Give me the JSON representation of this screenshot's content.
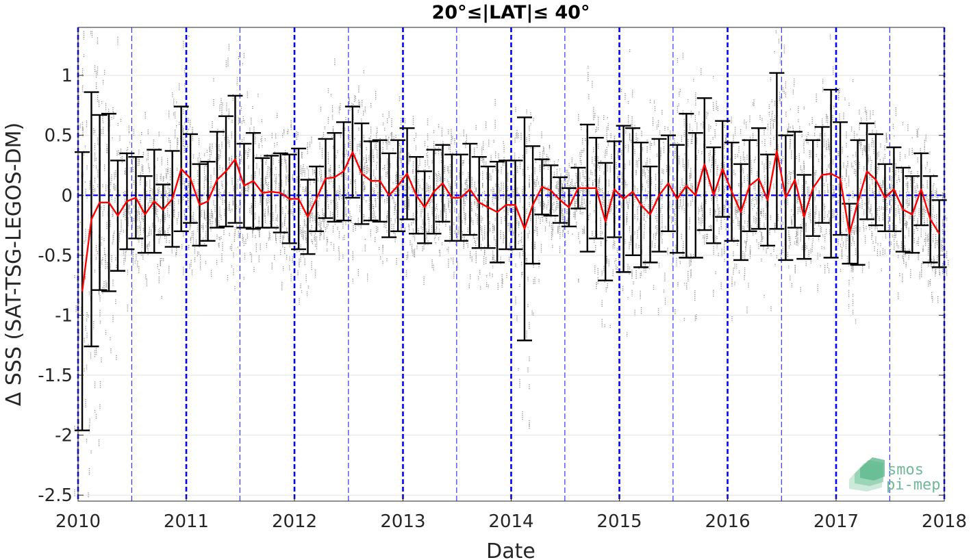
{
  "chart_data": {
    "type": "line",
    "title": "20°≤|LAT|≤ 40°",
    "xlabel": "Date",
    "ylabel": "Δ SSS (SAT-TSG-LEGOS-DM)",
    "xlim": [
      "2010-01-01",
      "2018-01-01"
    ],
    "ylim": [
      -2.55,
      1.4
    ],
    "x_ticks": [
      "2010",
      "2011",
      "2012",
      "2013",
      "2014",
      "2015",
      "2016",
      "2017",
      "2018"
    ],
    "y_ticks": [
      1,
      0.5,
      0,
      -0.5,
      -1,
      -1.5,
      -2,
      -2.5
    ],
    "y_tick_labels": [
      "1",
      "0.5",
      "0",
      "-0.5",
      "-1",
      "-1.5",
      "-2",
      "-2.5"
    ],
    "grid": true,
    "zero_line": {
      "y": 0,
      "style": "dashed",
      "color": "#0000ff"
    },
    "year_lines": {
      "style": "thick dashed",
      "color": "#0000ff"
    },
    "half_year_lines": {
      "style": "thin dashed",
      "color": "#3333ff"
    },
    "colors": {
      "mean_line": "#ff0000",
      "error_bars": "#000000",
      "scatter": "#777777",
      "reference_lines": "#0000ff"
    },
    "series": [
      {
        "style": "red line (monthly mean) with black error bars (± std)",
        "x": [
          "2010-01-15",
          "2010-02-15",
          "2010-03-15",
          "2010-04-15",
          "2010-05-15",
          "2010-06-15",
          "2010-07-15",
          "2010-08-15",
          "2010-09-15",
          "2010-10-15",
          "2010-11-15",
          "2010-12-15",
          "2011-01-15",
          "2011-02-15",
          "2011-03-15",
          "2011-04-15",
          "2011-05-15",
          "2011-06-15",
          "2011-07-15",
          "2011-08-15",
          "2011-09-15",
          "2011-10-15",
          "2011-11-15",
          "2011-12-15",
          "2012-01-15",
          "2012-02-15",
          "2012-03-15",
          "2012-04-15",
          "2012-05-15",
          "2012-06-15",
          "2012-07-15",
          "2012-08-15",
          "2012-09-15",
          "2012-10-15",
          "2012-11-15",
          "2012-12-15",
          "2013-01-15",
          "2013-02-15",
          "2013-03-15",
          "2013-04-15",
          "2013-05-15",
          "2013-06-15",
          "2013-07-15",
          "2013-08-15",
          "2013-09-15",
          "2013-10-15",
          "2013-11-15",
          "2013-12-15",
          "2014-01-15",
          "2014-02-15",
          "2014-03-15",
          "2014-04-15",
          "2014-05-15",
          "2014-06-15",
          "2014-07-15",
          "2014-08-15",
          "2014-09-15",
          "2014-10-15",
          "2014-11-15",
          "2014-12-15",
          "2015-01-15",
          "2015-02-15",
          "2015-03-15",
          "2015-04-15",
          "2015-05-15",
          "2015-06-15",
          "2015-07-15",
          "2015-08-15",
          "2015-09-15",
          "2015-10-15",
          "2015-11-15",
          "2015-12-15",
          "2016-01-15",
          "2016-02-15",
          "2016-03-15",
          "2016-04-15",
          "2016-05-15",
          "2016-06-15",
          "2016-07-15",
          "2016-08-15",
          "2016-09-15",
          "2016-10-15",
          "2016-11-15",
          "2016-12-15",
          "2017-01-15",
          "2017-02-15",
          "2017-03-15",
          "2017-04-15",
          "2017-05-15",
          "2017-06-15",
          "2017-07-15",
          "2017-08-15",
          "2017-09-15",
          "2017-10-15",
          "2017-11-15",
          "2017-12-15"
        ],
        "y": [
          -0.8,
          -0.2,
          -0.06,
          -0.06,
          -0.17,
          -0.05,
          -0.02,
          -0.16,
          -0.05,
          -0.12,
          -0.03,
          0.22,
          0.14,
          -0.08,
          -0.05,
          0.13,
          0.2,
          0.3,
          0.08,
          0.12,
          0.02,
          0.03,
          0.02,
          -0.03,
          -0.03,
          -0.18,
          -0.03,
          0.14,
          0.15,
          0.2,
          0.36,
          0.18,
          0.12,
          0.12,
          0.0,
          0.08,
          0.18,
          0.0,
          -0.1,
          0.03,
          0.1,
          -0.02,
          -0.02,
          0.05,
          -0.06,
          -0.1,
          -0.14,
          -0.08,
          -0.08,
          -0.28,
          -0.08,
          0.07,
          0.04,
          -0.04,
          -0.1,
          0.06,
          0.06,
          0.06,
          -0.22,
          0.05,
          -0.03,
          0.03,
          -0.08,
          -0.16,
          0.0,
          0.1,
          -0.03,
          0.08,
          0.0,
          0.26,
          0.0,
          0.22,
          0.03,
          -0.14,
          0.08,
          0.14,
          -0.04,
          0.37,
          -0.02,
          0.13,
          -0.18,
          0.06,
          0.17,
          0.18,
          0.14,
          -0.32,
          -0.06,
          0.2,
          0.13,
          -0.02,
          0.05,
          -0.12,
          -0.16,
          0.05,
          -0.2,
          -0.32
        ],
        "err": [
          1.16,
          1.06,
          0.73,
          0.74,
          0.46,
          0.4,
          0.34,
          0.32,
          0.43,
          0.21,
          0.4,
          0.52,
          0.37,
          0.34,
          0.33,
          0.4,
          0.46,
          0.53,
          0.35,
          0.4,
          0.29,
          0.3,
          0.33,
          0.37,
          0.42,
          0.31,
          0.27,
          0.33,
          0.37,
          0.41,
          0.38,
          0.42,
          0.33,
          0.34,
          0.35,
          0.38,
          0.38,
          0.32,
          0.3,
          0.35,
          0.32,
          0.36,
          0.36,
          0.38,
          0.38,
          0.34,
          0.42,
          0.37,
          0.37,
          0.93,
          0.49,
          0.23,
          0.21,
          0.19,
          0.16,
          0.17,
          0.53,
          0.42,
          0.49,
          0.4,
          0.61,
          0.53,
          0.52,
          0.4,
          0.47,
          0.4,
          0.45,
          0.6,
          0.52,
          0.55,
          0.4,
          0.4,
          0.41,
          0.4,
          0.38,
          0.42,
          0.38,
          0.65,
          0.52,
          0.4,
          0.35,
          0.4,
          0.4,
          0.7,
          0.47,
          0.25,
          0.52,
          0.4,
          0.38,
          0.28,
          0.35,
          0.35,
          0.32,
          0.3,
          0.36,
          0.28
        ]
      }
    ]
  },
  "logo": {
    "line1": "smos",
    "line2": "pi-mep"
  }
}
